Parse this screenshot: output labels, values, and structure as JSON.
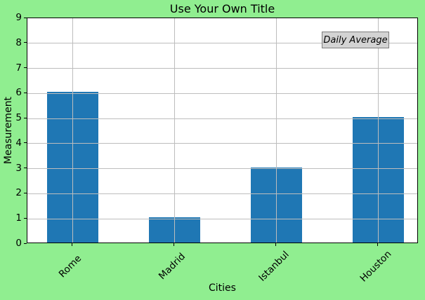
{
  "chart_data": {
    "type": "bar",
    "title": "Use Your Own Title",
    "xlabel": "Cities",
    "ylabel": "Measurement",
    "categories": [
      "Rome",
      "Madrid",
      "Istanbul",
      "Houston"
    ],
    "series": [
      {
        "name": "Daily Average",
        "values": [
          6,
          1,
          3,
          5
        ]
      }
    ],
    "ylim": [
      0,
      9
    ],
    "yticks": [
      0,
      1,
      2,
      3,
      4,
      5,
      6,
      7,
      8,
      9
    ],
    "xtick_rotation_deg": 45,
    "grid": true,
    "legend": {
      "label": "Daily Average",
      "location": "upper right",
      "style": "italic"
    },
    "colors": {
      "figure_background": "#90ee90",
      "plot_background": "#ffffff",
      "bar": "#1f77b4",
      "grid": "#bdbdbd",
      "spine": "#000000",
      "text": "#000000",
      "legend_background": "#d3d3d3",
      "legend_border": "#7d7d7d"
    }
  }
}
